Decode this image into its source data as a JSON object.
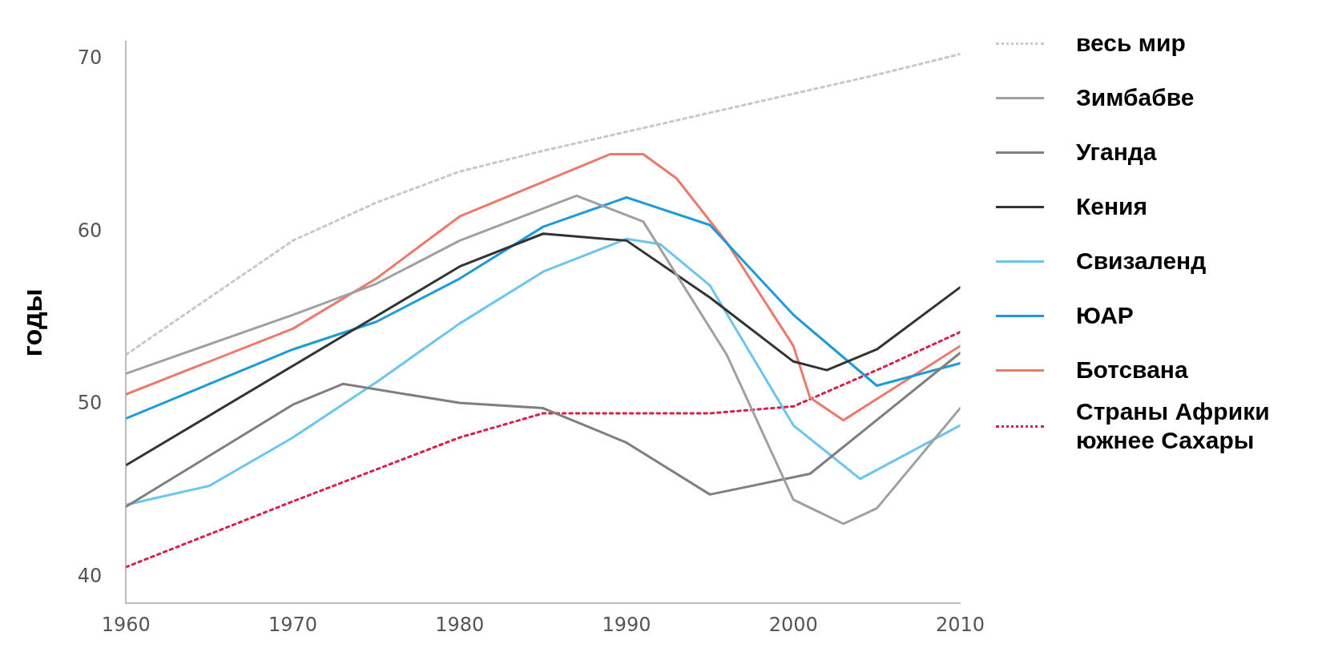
{
  "chart_data": {
    "type": "line",
    "ylabel": "годы",
    "xlim": [
      1960,
      2010
    ],
    "xticks": [
      1960,
      1970,
      1980,
      1990,
      2000,
      2010
    ],
    "ylim": [
      38.5,
      71
    ],
    "yticks": [
      40,
      50,
      60,
      70
    ],
    "grid": false,
    "legend": "right",
    "marker": "none",
    "series": [
      {
        "name": "весь мир",
        "color": "#c8c8c8",
        "line_style": "dotted",
        "x": [
          1960,
          1970,
          1975,
          1980,
          1985,
          1990,
          1995,
          2000,
          2005,
          2010
        ],
        "values": [
          52.9,
          59.5,
          61.7,
          63.5,
          64.7,
          65.8,
          66.9,
          68,
          69.1,
          70.3
        ]
      },
      {
        "name": "Зимбабве",
        "color": "#a0a0a0",
        "line_style": "solid",
        "x": [
          1960,
          1970,
          1975,
          1980,
          1987,
          1991,
          1996,
          2000,
          2003,
          2005,
          2010
        ],
        "values": [
          51.8,
          55.2,
          57,
          59.5,
          62.1,
          60.6,
          52.9,
          44.5,
          43.1,
          44,
          49.8
        ]
      },
      {
        "name": "Уганда",
        "color": "#7f7f7f",
        "line_style": "solid",
        "x": [
          1960,
          1970,
          1973,
          1980,
          1985,
          1990,
          1995,
          2001,
          2010
        ],
        "values": [
          44.1,
          50,
          51.2,
          50.1,
          49.8,
          47.8,
          44.8,
          46,
          53
        ]
      },
      {
        "name": "Кения",
        "color": "#333333",
        "line_style": "solid",
        "x": [
          1960,
          1980,
          1985,
          1990,
          1995,
          2000,
          2002,
          2005,
          2010
        ],
        "values": [
          46.5,
          58,
          59.9,
          59.5,
          56.2,
          52.5,
          52,
          53.2,
          56.8
        ]
      },
      {
        "name": "Свизаленд",
        "color": "#6cc5ec",
        "line_style": "solid",
        "x": [
          1960,
          1965,
          1970,
          1975,
          1980,
          1985,
          1990,
          1992,
          1995,
          2000,
          2004,
          2010
        ],
        "values": [
          44.2,
          45.3,
          48.1,
          51.3,
          54.7,
          57.7,
          59.6,
          59.3,
          56.9,
          48.8,
          45.7,
          48.8
        ]
      },
      {
        "name": "ЮАР",
        "color": "#1e9ad6",
        "line_style": "solid",
        "x": [
          1960,
          1970,
          1975,
          1980,
          1985,
          1990,
          1995,
          2000,
          2005,
          2010
        ],
        "values": [
          49.2,
          53.2,
          54.8,
          57.3,
          60.3,
          62,
          60.4,
          55.2,
          51.1,
          52.4
        ]
      },
      {
        "name": "Ботсвана",
        "color": "#ec7a6c",
        "line_style": "solid",
        "x": [
          1960,
          1970,
          1975,
          1980,
          1985,
          1989,
          1991,
          1993,
          1996,
          2000,
          2001,
          2003,
          2010
        ],
        "values": [
          50.6,
          54.4,
          57.3,
          60.9,
          62.9,
          64.5,
          64.5,
          63.1,
          59.4,
          53.4,
          50.4,
          49.1,
          53.4
        ]
      },
      {
        "name": "Страны Африки южнее Сахары",
        "color": "#d3234a",
        "line_style": "dotted",
        "x": [
          1960,
          1970,
          1980,
          1985,
          1995,
          2000,
          2005,
          2010
        ],
        "values": [
          40.6,
          44.4,
          48.1,
          49.5,
          49.5,
          49.9,
          52,
          54.2
        ]
      }
    ]
  }
}
